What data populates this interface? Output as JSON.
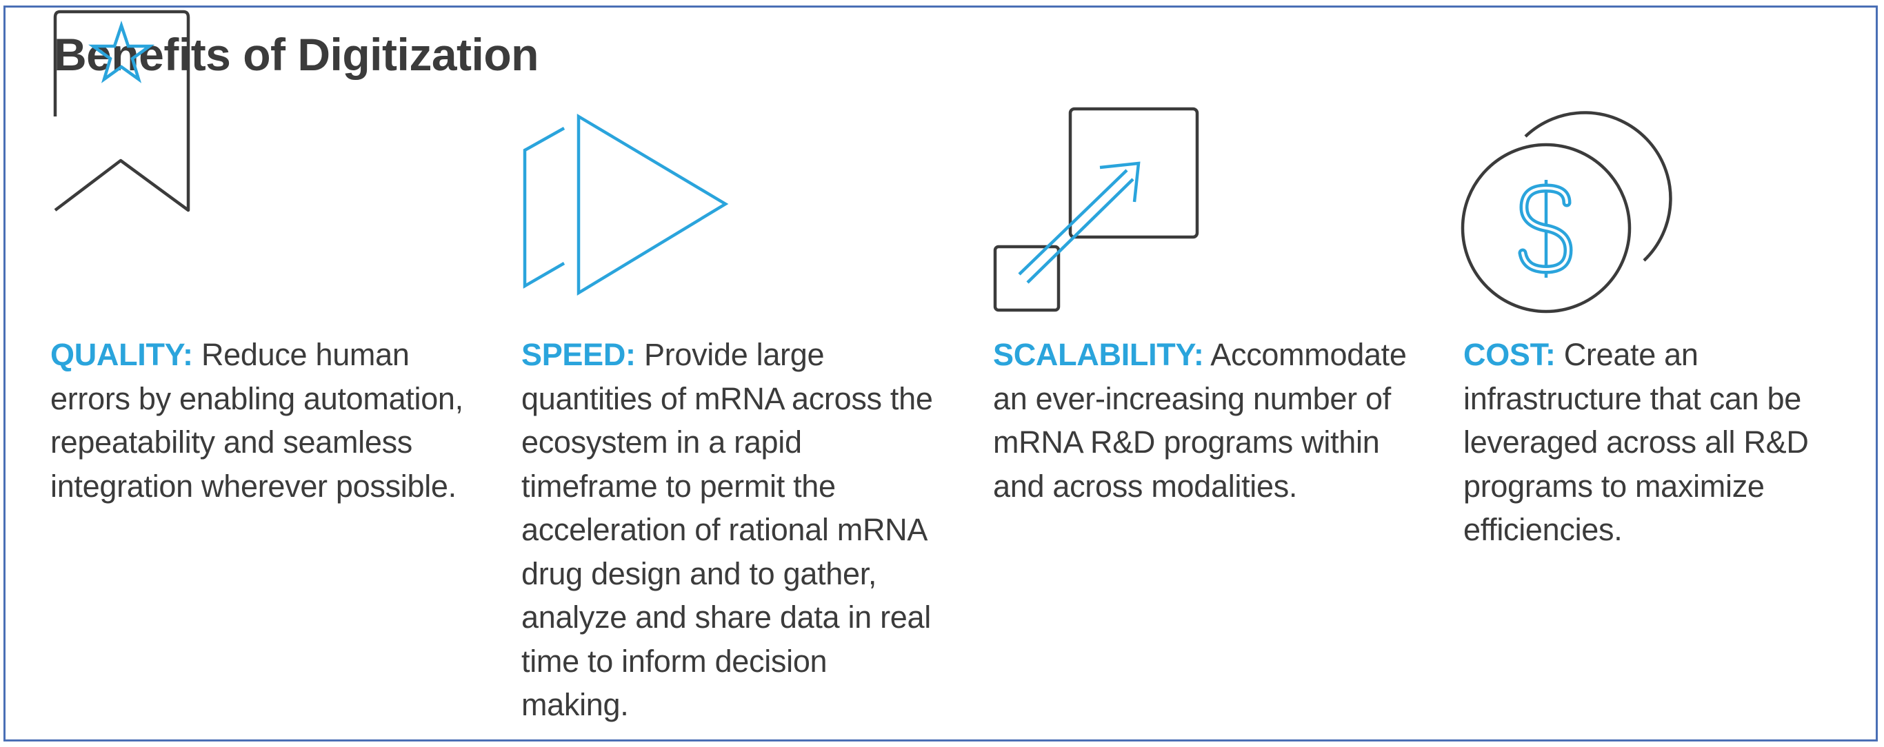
{
  "title": "Benefits of Digitization",
  "colors": {
    "accent": "#2aa4dc",
    "text": "#3b3b3b",
    "border": "#4a6fb5",
    "icon_stroke": "#3b3b3b"
  },
  "benefits": [
    {
      "icon": "ribbon-star-icon",
      "label": "QUALITY:",
      "text": "Reduce human errors by enabling automation, repeatability and seamless integration wherever possible."
    },
    {
      "icon": "fast-forward-icon",
      "label": "SPEED:",
      "text": "Provide large quantities of mRNA across the ecosystem in a rapid timeframe to permit the acceleration of rational mRNA drug design and to gather, analyze and share data in real time to inform decision making."
    },
    {
      "icon": "scale-up-arrow-icon",
      "label": "SCALABILITY:",
      "text": "Accommodate an ever-increasing number of mRNA R&D programs within and across modalities."
    },
    {
      "icon": "dollar-coins-icon",
      "label": "COST:",
      "text": "Create an infrastructure that can be leveraged across all R&D programs to maximize efficiencies."
    }
  ]
}
